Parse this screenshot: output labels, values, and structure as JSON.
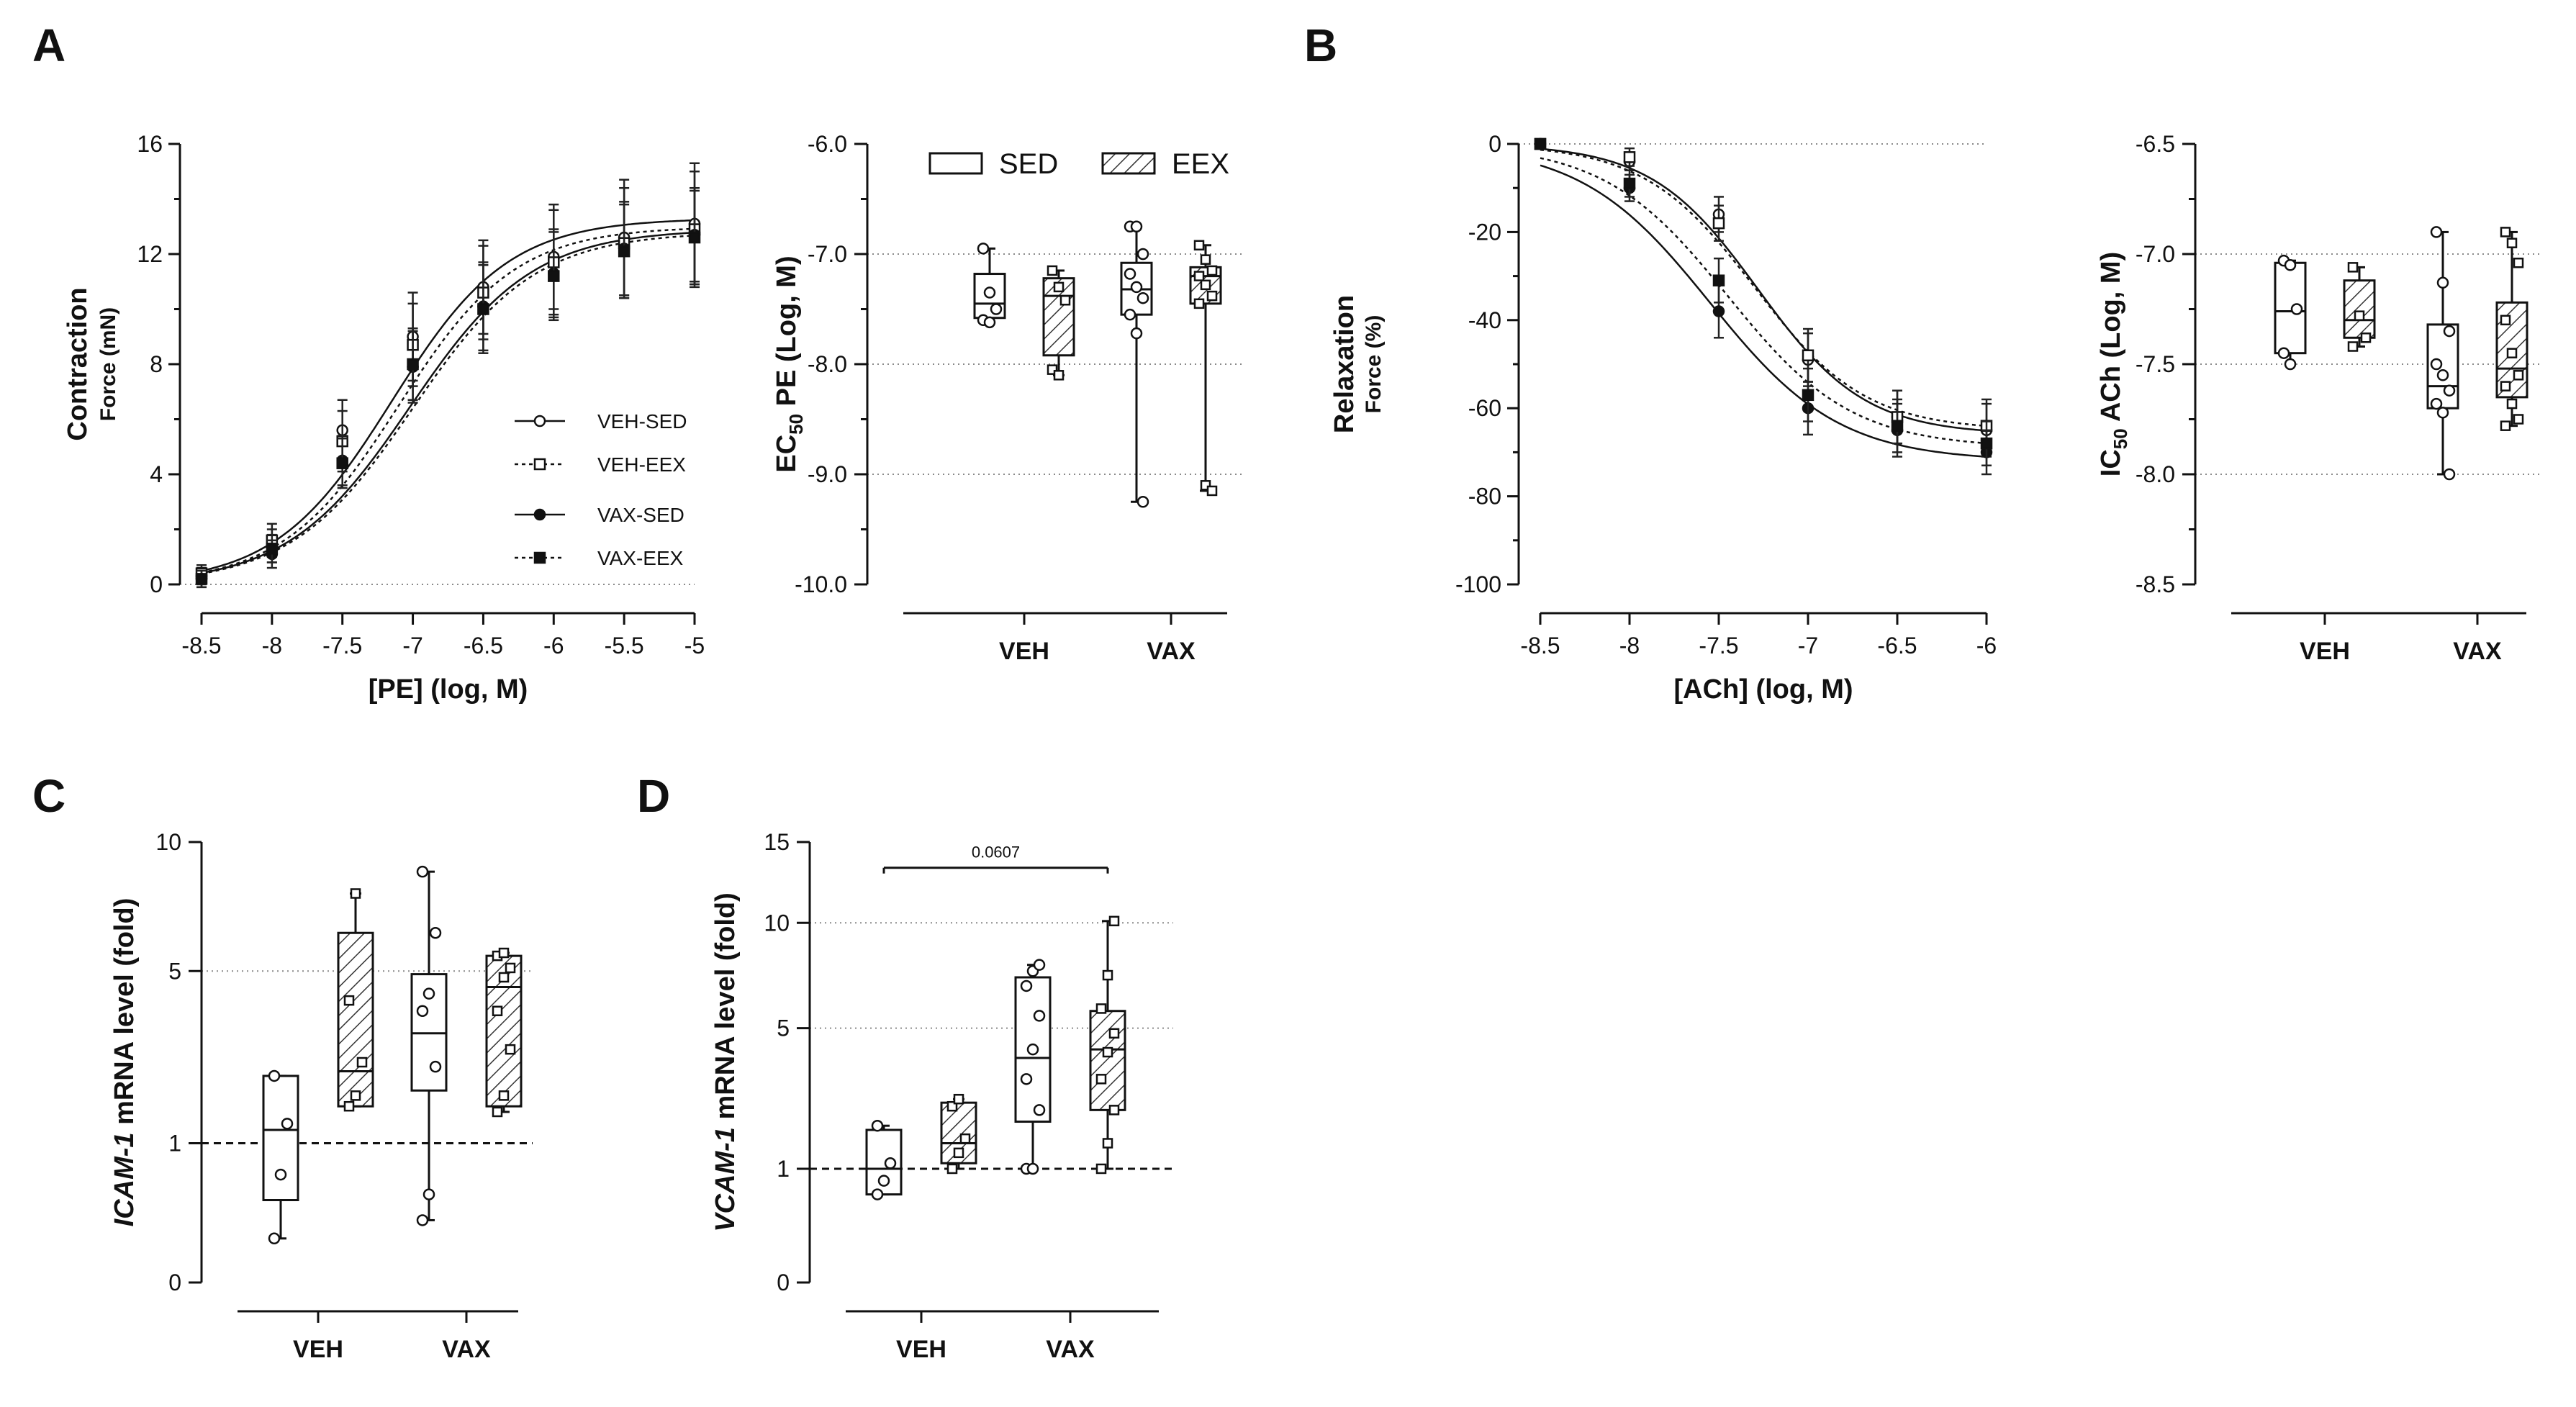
{
  "panels": {
    "A": "A",
    "B": "B",
    "C": "C",
    "D": "D"
  },
  "colors": {
    "ink": "#111111",
    "grid": "#8a8a8a",
    "open_fill": "#ffffff",
    "filled": "#111111"
  },
  "chart_data": [
    {
      "id": "A1",
      "type": "line",
      "panel": "A",
      "xlabel": "[PE] (log, M)",
      "ylabel": "Contraction",
      "ylabel_sub": "Force (mN)",
      "x_ticks": [
        "-8.5",
        "-8",
        "-7.5",
        "-7",
        "-6.5",
        "-6",
        "-5.5",
        "-5"
      ],
      "y_ticks": [
        "0",
        "4",
        "8",
        "12",
        "16"
      ],
      "xlim": [
        -8.5,
        -5
      ],
      "ylim": [
        0,
        16
      ],
      "x": [
        -8.5,
        -8,
        -7.5,
        -7,
        -6.5,
        -6,
        -5.5,
        -5
      ],
      "series": [
        {
          "name": "VEH-SED",
          "marker": "circle-open",
          "line": "solid",
          "values": [
            0.3,
            1.4,
            5.6,
            9.0,
            10.8,
            11.9,
            12.6,
            13.1
          ],
          "errors": [
            0.3,
            0.6,
            1.1,
            1.6,
            1.7,
            1.9,
            2.1,
            2.2
          ],
          "fit": {
            "bottom": 0,
            "top": 13.3,
            "logEC50": -7.15,
            "hill": 1.05
          }
        },
        {
          "name": "VEH-EEX",
          "marker": "square-open",
          "line": "dotted",
          "values": [
            0.4,
            1.6,
            5.2,
            8.7,
            10.6,
            11.7,
            12.4,
            12.9
          ],
          "errors": [
            0.3,
            0.6,
            1.1,
            1.5,
            1.7,
            1.9,
            2.0,
            2.1
          ],
          "fit": {
            "bottom": 0,
            "top": 13.0,
            "logEC50": -7.1,
            "hill": 1.05
          }
        },
        {
          "name": "VAX-SED",
          "marker": "circle-filled",
          "line": "solid",
          "values": [
            0.2,
            1.1,
            4.5,
            7.9,
            10.1,
            11.3,
            12.2,
            12.7
          ],
          "errors": [
            0.3,
            0.5,
            0.9,
            1.3,
            1.6,
            1.6,
            1.7,
            1.7
          ],
          "fit": {
            "bottom": 0,
            "top": 12.9,
            "logEC50": -7.02,
            "hill": 1.0
          }
        },
        {
          "name": "VAX-EEX",
          "marker": "square-filled",
          "line": "dotted",
          "values": [
            0.2,
            1.3,
            4.4,
            8.0,
            10.0,
            11.2,
            12.1,
            12.6
          ],
          "errors": [
            0.3,
            0.5,
            0.9,
            1.3,
            1.6,
            1.6,
            1.7,
            1.7
          ],
          "fit": {
            "bottom": 0,
            "top": 12.8,
            "logEC50": -7.0,
            "hill": 1.0
          }
        }
      ]
    },
    {
      "id": "A2",
      "type": "box",
      "panel": "A",
      "ylabel_pre": "EC",
      "ylabel_sub": "50",
      "ylabel_post": " PE (Log, M)",
      "y_ticks": [
        "-6.0",
        "-7.0",
        "-8.0",
        "-9.0",
        "-10.0"
      ],
      "ylim": [
        -10,
        -6
      ],
      "gridlines": [
        -7,
        -8,
        -9
      ],
      "categories": [
        "VEH",
        "VAX"
      ],
      "legend": [
        "SED",
        "EEX"
      ],
      "boxes": [
        {
          "group": "VEH",
          "name": "SED",
          "pattern": "open",
          "marker": "circle",
          "min": -7.62,
          "q1": -7.58,
          "median": -7.45,
          "q3": -7.18,
          "max": -6.95,
          "points": [
            -6.95,
            -7.35,
            -7.5,
            -7.6,
            -7.62
          ]
        },
        {
          "group": "VEH",
          "name": "EEX",
          "pattern": "hatch",
          "marker": "square",
          "min": -8.1,
          "q1": -7.92,
          "median": -7.38,
          "q3": -7.22,
          "max": -7.15,
          "points": [
            -7.15,
            -7.3,
            -7.42,
            -8.05,
            -8.1
          ]
        },
        {
          "group": "VAX",
          "name": "SED",
          "pattern": "open",
          "marker": "circle",
          "min": -9.25,
          "q1": -7.55,
          "median": -7.32,
          "q3": -7.08,
          "max": -6.75,
          "points": [
            -6.75,
            -6.75,
            -7.0,
            -7.18,
            -7.3,
            -7.4,
            -7.55,
            -7.72,
            -9.25
          ]
        },
        {
          "group": "VAX",
          "name": "EEX",
          "pattern": "hatch",
          "marker": "square",
          "min": -9.15,
          "q1": -7.45,
          "median": -7.2,
          "q3": -7.12,
          "max": -6.92,
          "points": [
            -6.92,
            -7.05,
            -7.15,
            -7.2,
            -7.28,
            -7.38,
            -7.45,
            -9.1,
            -9.15
          ]
        }
      ]
    },
    {
      "id": "B1",
      "type": "line",
      "panel": "B",
      "xlabel": "[ACh] (log, M)",
      "ylabel": "Relaxation",
      "ylabel_sub": "Force (%)",
      "x_ticks": [
        "-8.5",
        "-8",
        "-7.5",
        "-7",
        "-6.5",
        "-6"
      ],
      "y_ticks": [
        "0",
        "-20",
        "-40",
        "-60",
        "-80",
        "-100"
      ],
      "xlim": [
        -8.5,
        -6
      ],
      "ylim": [
        -100,
        0
      ],
      "x": [
        -8.5,
        -8,
        -7.5,
        -7,
        -6.5,
        -6
      ],
      "series": [
        {
          "name": "VEH-SED",
          "marker": "circle-open",
          "line": "solid",
          "values": [
            0,
            -4,
            -16,
            -49,
            -62,
            -65
          ],
          "errors": [
            0,
            2,
            4,
            6,
            6,
            6
          ],
          "fit": {
            "bottom": -66,
            "top": 0,
            "logEC50": -7.28,
            "hill": 1.45
          }
        },
        {
          "name": "VEH-EEX",
          "marker": "square-open",
          "line": "dotted",
          "values": [
            0,
            -3,
            -18,
            -48,
            -62,
            -64
          ],
          "errors": [
            0,
            2,
            4,
            6,
            6,
            6
          ],
          "fit": {
            "bottom": -65,
            "top": 0,
            "logEC50": -7.3,
            "hill": 1.4
          }
        },
        {
          "name": "VAX-SED",
          "marker": "circle-filled",
          "line": "solid",
          "values": [
            0,
            -10,
            -38,
            -60,
            -65,
            -70
          ],
          "errors": [
            0,
            3,
            6,
            6,
            6,
            5
          ],
          "fit": {
            "bottom": -72,
            "top": 0,
            "logEC50": -7.55,
            "hill": 1.2
          }
        },
        {
          "name": "VAX-EEX",
          "marker": "square-filled",
          "line": "dotted",
          "values": [
            0,
            -9,
            -31,
            -57,
            -64,
            -68
          ],
          "errors": [
            0,
            3,
            5,
            6,
            6,
            5
          ],
          "fit": {
            "bottom": -69,
            "top": 0,
            "logEC50": -7.45,
            "hill": 1.25
          }
        }
      ]
    },
    {
      "id": "B2",
      "type": "box",
      "panel": "B",
      "ylabel_pre": "IC",
      "ylabel_sub": "50",
      "ylabel_post": " ACh (Log, M)",
      "y_ticks": [
        "-6.5",
        "-7.0",
        "-7.5",
        "-8.0",
        "-8.5"
      ],
      "ylim": [
        -8.5,
        -6.5
      ],
      "gridlines": [
        -7,
        -7.5,
        -8
      ],
      "categories": [
        "VEH",
        "VAX"
      ],
      "boxes": [
        {
          "group": "VEH",
          "name": "SED",
          "pattern": "open",
          "marker": "circle",
          "min": -7.5,
          "q1": -7.45,
          "median": -7.26,
          "q3": -7.04,
          "max": -7.03,
          "points": [
            -7.03,
            -7.05,
            -7.25,
            -7.45,
            -7.5
          ]
        },
        {
          "group": "VEH",
          "name": "EEX",
          "pattern": "hatch",
          "marker": "square",
          "min": -7.42,
          "q1": -7.38,
          "median": -7.3,
          "q3": -7.12,
          "max": -7.06,
          "points": [
            -7.06,
            -7.28,
            -7.38,
            -7.42
          ]
        },
        {
          "group": "VAX",
          "name": "SED",
          "pattern": "open",
          "marker": "circle",
          "min": -8.0,
          "q1": -7.7,
          "median": -7.6,
          "q3": -7.32,
          "max": -6.9,
          "points": [
            -6.9,
            -7.13,
            -7.35,
            -7.5,
            -7.55,
            -7.62,
            -7.68,
            -7.72,
            -8.0
          ]
        },
        {
          "group": "VAX",
          "name": "EEX",
          "pattern": "hatch",
          "marker": "square",
          "min": -7.78,
          "q1": -7.65,
          "median": -7.52,
          "q3": -7.22,
          "max": -6.9,
          "points": [
            -6.9,
            -6.95,
            -7.04,
            -7.3,
            -7.45,
            -7.55,
            -7.6,
            -7.68,
            -7.75,
            -7.78
          ]
        }
      ]
    },
    {
      "id": "C",
      "type": "box",
      "panel": "C",
      "ylabel_italic": "ICAM-1",
      "ylabel_rest": " mRNA level (fold)",
      "y_ticks": [
        "0",
        "1",
        "5",
        "10"
      ],
      "ylim": [
        0,
        10
      ],
      "scale": "sqrt",
      "gridlines": [
        5
      ],
      "reference_line": 1,
      "categories": [
        "VEH",
        "VAX"
      ],
      "boxes": [
        {
          "group": "VEH",
          "name": "SED",
          "pattern": "open",
          "marker": "circle",
          "min": 0.1,
          "q1": 0.35,
          "median": 1.2,
          "q3": 2.2,
          "max": 2.2,
          "points": [
            0.1,
            0.6,
            1.3,
            2.2
          ]
        },
        {
          "group": "VEH",
          "name": "EEX",
          "pattern": "hatch",
          "marker": "square",
          "min": 1.6,
          "q1": 1.6,
          "median": 2.3,
          "q3": 6.3,
          "max": 7.8,
          "points": [
            1.6,
            1.8,
            2.5,
            4.1,
            7.8
          ]
        },
        {
          "group": "VAX",
          "name": "SED",
          "pattern": "open",
          "marker": "circle",
          "min": 0.2,
          "q1": 1.9,
          "median": 3.2,
          "q3": 4.9,
          "max": 8.7,
          "points": [
            0.2,
            0.4,
            2.4,
            3.8,
            4.3,
            6.3,
            8.7
          ]
        },
        {
          "group": "VAX",
          "name": "EEX",
          "pattern": "hatch",
          "marker": "square",
          "min": 1.5,
          "q1": 1.6,
          "median": 4.5,
          "q3": 5.5,
          "max": 5.6,
          "points": [
            1.5,
            1.8,
            2.8,
            3.8,
            4.8,
            5.1,
            5.5,
            5.6
          ]
        }
      ]
    },
    {
      "id": "D",
      "type": "box",
      "panel": "D",
      "ylabel_italic": "VCAM-1",
      "ylabel_rest": " mRNA level (fold)",
      "y_ticks": [
        "0",
        "1",
        "5",
        "10",
        "15"
      ],
      "ylim": [
        0,
        15
      ],
      "scale": "sqrt",
      "gridlines": [
        5,
        10
      ],
      "reference_line": 1,
      "categories": [
        "VEH",
        "VAX"
      ],
      "annotation": "0.0607",
      "boxes": [
        {
          "group": "VEH",
          "name": "SED",
          "pattern": "open",
          "marker": "circle",
          "min": 0.6,
          "q1": 0.6,
          "median": 1.0,
          "q3": 1.8,
          "max": 1.9,
          "points": [
            0.6,
            0.8,
            1.1,
            1.9
          ]
        },
        {
          "group": "VEH",
          "name": "EEX",
          "pattern": "hatch",
          "marker": "square",
          "min": 1.0,
          "q1": 1.1,
          "median": 1.5,
          "q3": 2.5,
          "max": 2.6,
          "points": [
            1.0,
            1.3,
            1.6,
            2.4,
            2.6
          ]
        },
        {
          "group": "VAX",
          "name": "SED",
          "pattern": "open",
          "marker": "circle",
          "min": 1.0,
          "q1": 2.0,
          "median": 3.9,
          "q3": 7.2,
          "max": 7.8,
          "points": [
            1.0,
            1.0,
            2.3,
            3.2,
            4.2,
            5.5,
            6.8,
            7.5,
            7.8
          ]
        },
        {
          "group": "VAX",
          "name": "EEX",
          "pattern": "hatch",
          "marker": "square",
          "min": 1.0,
          "q1": 2.3,
          "median": 4.2,
          "q3": 5.7,
          "max": 10.1,
          "points": [
            1.0,
            1.5,
            2.3,
            3.2,
            4.1,
            4.8,
            5.8,
            7.3,
            10.1
          ]
        }
      ]
    }
  ]
}
